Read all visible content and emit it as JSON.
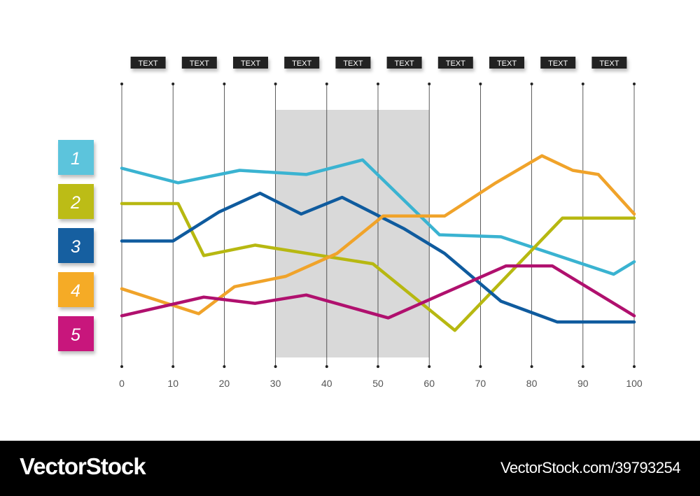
{
  "chart_data": {
    "type": "line",
    "x_ticks": [
      0,
      10,
      20,
      30,
      40,
      50,
      60,
      70,
      80,
      90,
      100
    ],
    "xlim": [
      0,
      100
    ],
    "header_labels": [
      "TEXT",
      "TEXT",
      "TEXT",
      "TEXT",
      "TEXT",
      "TEXT",
      "TEXT",
      "TEXT",
      "TEXT",
      "TEXT"
    ],
    "highlight_range": [
      30,
      60
    ],
    "grid": "vertical lines at each tick",
    "series": [
      {
        "label": "1",
        "color": "#3ab3d1",
        "legend_color": "#5bc4dc",
        "points": [
          [
            0,
            0.84
          ],
          [
            11,
            0.77
          ],
          [
            23,
            0.83
          ],
          [
            36,
            0.81
          ],
          [
            47,
            0.88
          ],
          [
            62,
            0.52
          ],
          [
            74,
            0.51
          ],
          [
            96,
            0.33
          ],
          [
            100,
            0.39
          ]
        ]
      },
      {
        "label": "2",
        "color": "#b7b811",
        "legend_color": "#bcbc14",
        "points": [
          [
            0,
            0.67
          ],
          [
            11,
            0.67
          ],
          [
            16,
            0.42
          ],
          [
            26,
            0.47
          ],
          [
            49,
            0.38
          ],
          [
            65,
            0.06
          ],
          [
            86,
            0.6
          ],
          [
            100,
            0.6
          ]
        ]
      },
      {
        "label": "3",
        "color": "#0f5b9e",
        "legend_color": "#145ea0",
        "points": [
          [
            0,
            0.49
          ],
          [
            10,
            0.49
          ],
          [
            19,
            0.63
          ],
          [
            27,
            0.72
          ],
          [
            35,
            0.62
          ],
          [
            43,
            0.7
          ],
          [
            55,
            0.55
          ],
          [
            63,
            0.43
          ],
          [
            74,
            0.2
          ],
          [
            85,
            0.1
          ],
          [
            100,
            0.1
          ]
        ]
      },
      {
        "label": "4",
        "color": "#f0a32a",
        "legend_color": "#f5ab26",
        "points": [
          [
            0,
            0.26
          ],
          [
            15,
            0.14
          ],
          [
            22,
            0.27
          ],
          [
            32,
            0.32
          ],
          [
            42,
            0.43
          ],
          [
            51,
            0.61
          ],
          [
            63,
            0.61
          ],
          [
            73,
            0.77
          ],
          [
            82,
            0.9
          ],
          [
            88,
            0.83
          ],
          [
            93,
            0.81
          ],
          [
            100,
            0.62
          ]
        ]
      },
      {
        "label": "5",
        "color": "#b0106e",
        "legend_color": "#c8127b",
        "points": [
          [
            0,
            0.13
          ],
          [
            16,
            0.22
          ],
          [
            26,
            0.19
          ],
          [
            36,
            0.23
          ],
          [
            52,
            0.12
          ],
          [
            63,
            0.24
          ],
          [
            75,
            0.37
          ],
          [
            84,
            0.37
          ],
          [
            100,
            0.13
          ]
        ]
      }
    ]
  },
  "footer": {
    "brand": "VectorStock",
    "image_id": "VectorStock.com/39793254"
  }
}
